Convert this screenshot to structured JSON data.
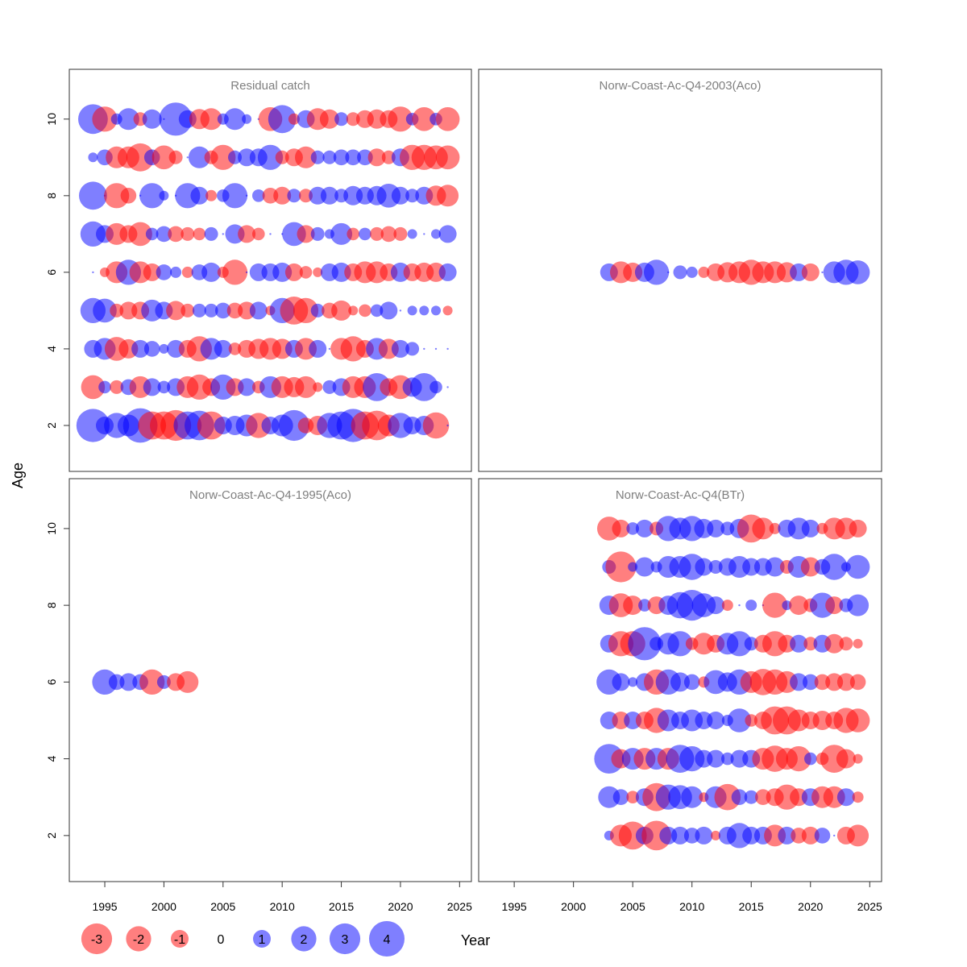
{
  "colors": {
    "negative": "#ff0000",
    "positive": "#0000ff",
    "title": "#7f7f7f"
  },
  "chart_data": {
    "type": "scatter",
    "subtype": "bubble-residuals",
    "xlabel": "Year",
    "ylabel": "Age",
    "xlim": [
      1992,
      2026
    ],
    "ylim": [
      0.8,
      11.3
    ],
    "x_ticks": [
      1995,
      2000,
      2005,
      2010,
      2015,
      2020,
      2025
    ],
    "y_ticks": [
      2,
      4,
      6,
      8,
      10
    ],
    "legend": {
      "placement": "bottom-left",
      "values": [
        -3,
        -2,
        -1,
        0,
        1,
        2,
        3,
        4
      ],
      "labels": [
        "-3",
        "-2",
        "-1",
        "0",
        "1",
        "2",
        "3",
        "4"
      ]
    },
    "panels": [
      {
        "title": "Residual catch",
        "grid_pos": "top-left",
        "years": [
          1994,
          1995,
          1996,
          1997,
          1998,
          1999,
          2000,
          2001,
          2002,
          2003,
          2004,
          2005,
          2006,
          2007,
          2008,
          2009,
          2010,
          2011,
          2012,
          2013,
          2014,
          2015,
          2016,
          2017,
          2018,
          2019,
          2020,
          2021,
          2022,
          2023,
          2024
        ],
        "ages": [
          2,
          3,
          4,
          5,
          6,
          7,
          8,
          9,
          10
        ],
        "residuals": {
          "2": [
            3.5,
            1.0,
            2.0,
            1.5,
            3.8,
            -2.5,
            -2.5,
            -3.0,
            2.5,
            2.8,
            -2.5,
            1.0,
            1.2,
            1.5,
            -2.0,
            1.0,
            1.5,
            3.0,
            -0.8,
            -1.2,
            2.0,
            2.5,
            3.5,
            -2.5,
            -2.8,
            -1.5,
            2.0,
            1.0,
            1.2,
            -2.2,
            0.0
          ],
          "3": [
            -1.8,
            0.5,
            -0.6,
            0.8,
            -1.5,
            1.0,
            0.5,
            1.0,
            -1.5,
            -2.0,
            -1.0,
            2.0,
            -1.0,
            1.0,
            -0.5,
            1.5,
            -1.5,
            -1.3,
            -1.5,
            -0.3,
            0.6,
            1.0,
            -1.5,
            -1.5,
            2.5,
            -1.0,
            -1.8,
            1.2,
            2.5,
            0.5,
            0.0
          ],
          "4": [
            1.0,
            1.5,
            -1.8,
            -1.2,
            1.0,
            0.8,
            0.3,
            1.0,
            -1.0,
            -2.0,
            1.5,
            1.0,
            -0.5,
            -1.0,
            -1.3,
            -1.5,
            -1.3,
            1.0,
            -1.5,
            1.0,
            0.0,
            -1.5,
            -2.0,
            -1.0,
            1.5,
            -1.3,
            1.0,
            0.6,
            0.0,
            0.0,
            0.0
          ],
          "5": [
            2.0,
            1.8,
            -0.6,
            -1.0,
            -1.0,
            1.5,
            1.0,
            -1.2,
            -0.6,
            0.6,
            0.6,
            0.8,
            -0.8,
            -1.0,
            1.0,
            -0.3,
            2.0,
            -2.5,
            -2.0,
            0.6,
            -0.8,
            -1.3,
            -0.3,
            -0.5,
            0.5,
            1.0,
            0.0,
            0.3,
            0.3,
            0.3,
            -0.3
          ],
          "6": [
            0.0,
            -0.3,
            -1.5,
            2.0,
            -1.5,
            -1.0,
            0.8,
            0.4,
            -0.4,
            0.8,
            1.2,
            -0.4,
            -2.0,
            0.0,
            1.0,
            1.0,
            1.2,
            -1.0,
            -0.5,
            -0.3,
            1.0,
            1.2,
            -1.0,
            -1.5,
            -1.5,
            -1.0,
            1.2,
            -1.0,
            -1.2,
            -1.2,
            1.0
          ],
          "7": [
            2.0,
            1.0,
            -1.5,
            -1.0,
            -1.8,
            0.5,
            0.8,
            -0.8,
            -0.6,
            -0.5,
            0.6,
            0.0,
            1.2,
            -1.0,
            -0.5,
            0.0,
            0.0,
            1.8,
            -1.0,
            0.6,
            0.3,
            1.5,
            -0.5,
            0.5,
            -0.6,
            -0.8,
            -0.6,
            0.3,
            0.0,
            0.3,
            1.0
          ],
          "8": [
            2.5,
            0.0,
            -2.0,
            -0.8,
            0.0,
            2.0,
            0.3,
            0.0,
            2.0,
            1.0,
            -0.4,
            0.5,
            2.0,
            0.0,
            0.5,
            -0.8,
            -1.0,
            0.6,
            -0.6,
            1.0,
            1.0,
            0.6,
            1.2,
            1.0,
            1.2,
            1.8,
            1.0,
            0.6,
            1.0,
            -1.3,
            -1.5
          ],
          "9": [
            0.3,
            0.8,
            -1.5,
            -1.5,
            -2.5,
            0.8,
            -1.8,
            -0.6,
            0.0,
            1.5,
            -0.6,
            -2.0,
            0.6,
            1.0,
            1.0,
            2.0,
            -0.6,
            -1.0,
            -1.5,
            0.6,
            0.6,
            0.8,
            0.8,
            0.8,
            -1.0,
            -0.6,
            1.0,
            -2.0,
            -2.0,
            -1.8,
            -1.8
          ],
          "10": [
            2.8,
            -2.0,
            0.4,
            1.5,
            -0.6,
            1.2,
            0.0,
            3.5,
            1.0,
            -1.3,
            -1.5,
            0.4,
            1.5,
            0.3,
            0.0,
            -1.8,
            2.5,
            -0.4,
            1.0,
            -1.5,
            -1.2,
            0.6,
            -0.6,
            -1.0,
            -1.2,
            -1.0,
            -2.0,
            0.5,
            -1.8,
            0.5,
            -1.8
          ]
        }
      },
      {
        "title": "Norw-Coast-Ac-Q4-2003(Aco)",
        "grid_pos": "top-right",
        "years": [
          2003,
          2004,
          2005,
          2006,
          2007,
          2008,
          2009,
          2010,
          2011,
          2012,
          2013,
          2014,
          2015,
          2016,
          2017,
          2018,
          2019,
          2020,
          2021,
          2022,
          2023,
          2024
        ],
        "ages": [
          6
        ],
        "residuals": {
          "6": [
            1.0,
            -1.5,
            -1.2,
            1.2,
            2.0,
            0.0,
            0.6,
            0.4,
            -0.4,
            -1.0,
            -1.3,
            -1.5,
            -2.0,
            -1.5,
            -1.5,
            -1.3,
            1.0,
            -1.0,
            0.0,
            1.5,
            2.0,
            1.8
          ]
        }
      },
      {
        "title": "Norw-Coast-Ac-Q4-1995(Aco)",
        "grid_pos": "bottom-left",
        "years": [
          1995,
          1996,
          1997,
          1998,
          1999,
          2000,
          2001,
          2002
        ],
        "ages": [
          6
        ],
        "residuals": {
          "6": [
            2.0,
            0.8,
            1.0,
            0.8,
            -2.0,
            0.6,
            -1.0,
            -1.5
          ]
        }
      },
      {
        "title": "Norw-Coast-Ac-Q4(BTr)",
        "grid_pos": "bottom-right",
        "years": [
          2003,
          2004,
          2005,
          2006,
          2007,
          2008,
          2009,
          2010,
          2011,
          2012,
          2013,
          2014,
          2015,
          2016,
          2017,
          2018,
          2019,
          2020,
          2021,
          2022,
          2023,
          2024
        ],
        "ages": [
          2,
          3,
          4,
          5,
          6,
          7,
          8,
          9,
          10
        ],
        "residuals": {
          "2": [
            0.3,
            -1.5,
            -2.5,
            1.0,
            -2.8,
            1.0,
            1.0,
            0.8,
            1.0,
            -0.3,
            1.0,
            2.0,
            1.0,
            1.0,
            -1.5,
            1.0,
            -0.8,
            -1.0,
            0.8,
            0.0,
            -1.0,
            -1.5
          ],
          "3": [
            1.5,
            0.8,
            -0.5,
            1.0,
            -2.5,
            2.0,
            1.8,
            1.5,
            -0.3,
            1.5,
            -2.2,
            0.8,
            0.6,
            -0.8,
            -1.0,
            -2.0,
            -1.0,
            1.0,
            -1.5,
            -1.5,
            1.0,
            -0.4
          ],
          "4": [
            2.8,
            -1.2,
            1.5,
            -1.5,
            1.5,
            -1.5,
            2.5,
            2.0,
            1.0,
            1.0,
            0.5,
            1.0,
            1.0,
            -1.5,
            -2.2,
            -1.5,
            -2.0,
            0.5,
            -0.5,
            -2.5,
            -1.2,
            -0.3
          ],
          "5": [
            1.0,
            -1.0,
            1.0,
            -1.0,
            -2.0,
            1.5,
            1.0,
            1.5,
            1.0,
            1.0,
            0.4,
            1.8,
            -0.5,
            -1.0,
            -2.5,
            -2.5,
            -1.5,
            -1.0,
            -1.2,
            -1.0,
            -2.0,
            -1.8
          ],
          "6": [
            2.0,
            1.0,
            0.3,
            1.0,
            -2.0,
            2.0,
            1.2,
            0.8,
            -0.4,
            1.8,
            1.2,
            2.0,
            -1.5,
            -2.2,
            -2.0,
            -1.5,
            1.0,
            0.8,
            -0.8,
            -1.0,
            -1.0,
            -0.8
          ],
          "7": [
            1.0,
            -2.0,
            -2.0,
            3.5,
            0.6,
            1.5,
            2.0,
            -0.5,
            -1.5,
            -1.0,
            1.5,
            2.0,
            0.6,
            -1.0,
            -2.0,
            -1.0,
            1.0,
            -0.6,
            1.0,
            -1.2,
            -0.6,
            -0.3
          ],
          "8": [
            1.2,
            -1.8,
            -1.2,
            0.5,
            -1.0,
            1.2,
            2.2,
            3.0,
            1.8,
            1.0,
            -0.4,
            0.0,
            0.4,
            0.0,
            -2.0,
            0.3,
            -1.2,
            -0.6,
            2.0,
            -1.0,
            0.6,
            1.5
          ],
          "9": [
            0.6,
            -3.0,
            0.3,
            1.2,
            0.4,
            1.5,
            1.5,
            2.2,
            1.0,
            0.6,
            1.0,
            1.5,
            1.0,
            1.0,
            1.2,
            -0.6,
            1.5,
            -1.2,
            0.8,
            2.2,
            0.3,
            1.8
          ],
          "10": [
            -1.8,
            -1.0,
            0.5,
            1.0,
            -0.6,
            2.0,
            1.5,
            2.0,
            1.2,
            1.0,
            0.6,
            1.2,
            -2.5,
            -1.5,
            -0.4,
            1.0,
            1.5,
            1.0,
            -0.4,
            -1.5,
            -1.5,
            -1.0
          ]
        }
      }
    ]
  }
}
